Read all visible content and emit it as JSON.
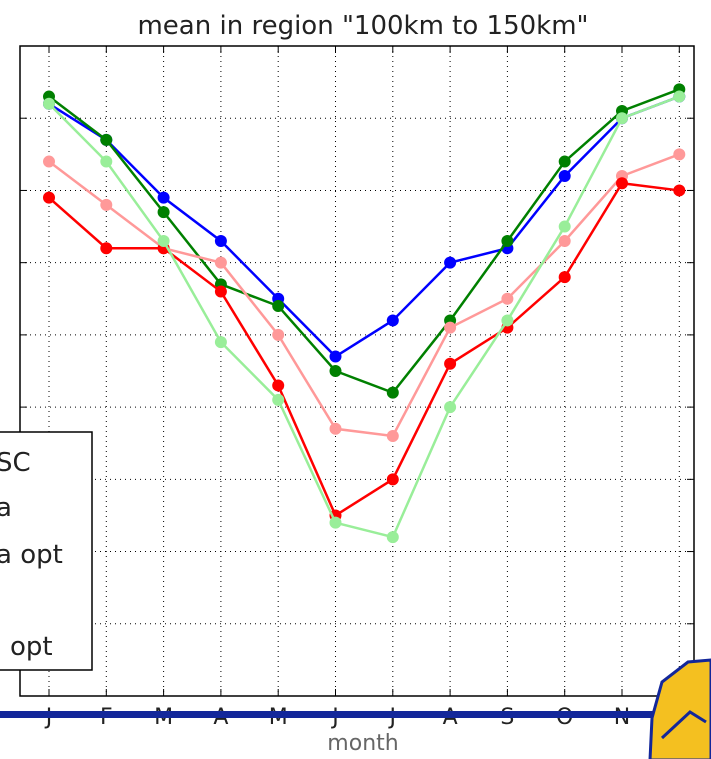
{
  "chart_data": {
    "type": "line",
    "title": "mean in region \"100km to 150km\"",
    "xlabel": "month",
    "ylabel": "",
    "categories": [
      "J",
      "F",
      "M",
      "A",
      "M",
      "J",
      "J",
      "A",
      "S",
      "O",
      "N",
      "D"
    ],
    "ylim": [
      0,
      9
    ],
    "grid": true,
    "legend_placement": "left, partially cut off",
    "legend_entries": [
      "SC",
      "a",
      "a opt",
      "",
      "opt"
    ],
    "series": [
      {
        "color": "#0000ff",
        "values": [
          8.2,
          7.7,
          6.9,
          6.3,
          5.5,
          4.7,
          5.2,
          6.0,
          6.2,
          7.2,
          8.0,
          8.3
        ]
      },
      {
        "color": "#008000",
        "values": [
          8.3,
          7.7,
          6.7,
          5.7,
          5.4,
          4.5,
          4.2,
          5.2,
          6.3,
          7.4,
          8.1,
          8.4
        ]
      },
      {
        "color": "#ff9999",
        "values": [
          7.4,
          6.8,
          6.2,
          6.0,
          5.0,
          3.7,
          3.6,
          5.1,
          5.5,
          6.3,
          7.2,
          7.5
        ]
      },
      {
        "color": "#ff0000",
        "values": [
          6.9,
          6.2,
          6.2,
          5.6,
          4.3,
          2.5,
          3.0,
          4.6,
          5.1,
          5.8,
          7.1,
          7.0
        ]
      },
      {
        "color": "#99ee99",
        "values": [
          8.2,
          7.4,
          6.3,
          4.9,
          4.1,
          2.4,
          2.2,
          4.0,
          5.2,
          6.5,
          8.0,
          8.3
        ]
      }
    ]
  }
}
